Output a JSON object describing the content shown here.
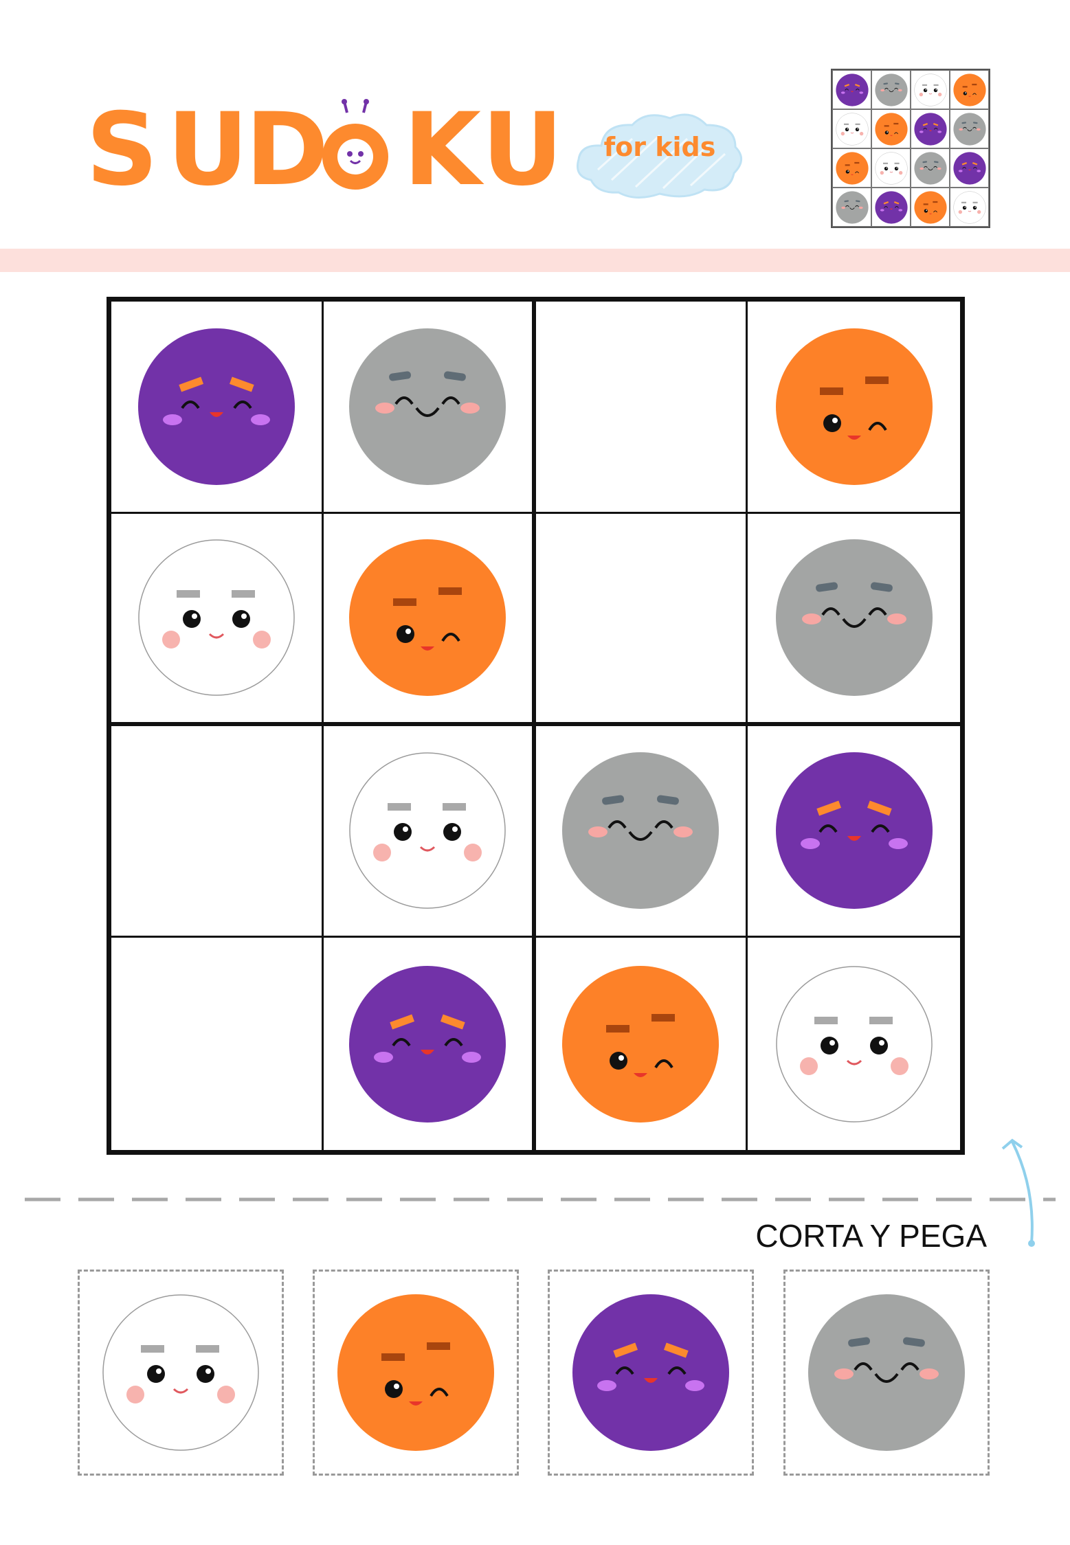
{
  "header": {
    "title_letters": [
      "S",
      "U",
      "D",
      "O",
      "K",
      "U"
    ],
    "subtitle": "for kids",
    "title_color": "#fd8a2e"
  },
  "colors": {
    "purple": "#7232a8",
    "gray": "#a3a5a4",
    "orange": "#fd8128",
    "white": "#ffffff",
    "divider": "#fde0dc",
    "cloud": "#cfe9f6"
  },
  "answer_key": [
    [
      "purple",
      "gray",
      "white",
      "orange"
    ],
    [
      "white",
      "orange",
      "purple",
      "gray"
    ],
    [
      "orange",
      "white",
      "gray",
      "purple"
    ],
    [
      "gray",
      "purple",
      "orange",
      "white"
    ]
  ],
  "puzzle": [
    [
      "purple",
      "gray",
      "",
      "orange"
    ],
    [
      "white",
      "orange",
      "",
      "gray"
    ],
    [
      "",
      "white",
      "gray",
      "purple"
    ],
    [
      "",
      "purple",
      "orange",
      "white"
    ]
  ],
  "cut_section": {
    "label": "CORTA Y PEGA",
    "pieces": [
      "white",
      "orange",
      "purple",
      "gray"
    ]
  }
}
